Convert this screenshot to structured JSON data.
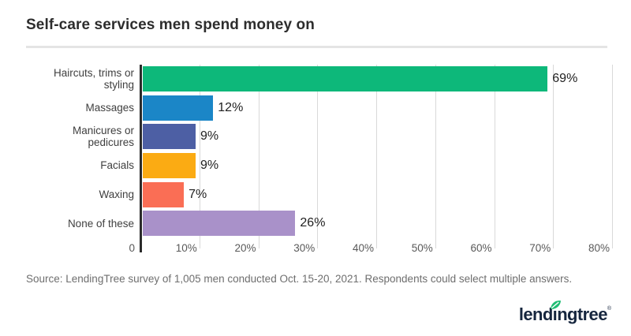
{
  "title": "Self-care services men spend money on",
  "source_note": "Source: LendingTree survey of 1,005 men conducted Oct. 15-20, 2021. Respondents could select multiple answers.",
  "logo": {
    "brand": "lendingtree",
    "brand_prefix": "lend",
    "brand_dotless_i": "ı",
    "brand_suffix": "ngtree",
    "registered_mark": "®",
    "text_color": "#16263e",
    "leaf_color": "#1fbd73"
  },
  "chart_data": {
    "type": "bar",
    "orientation": "horizontal",
    "title": "Self-care services men spend money on",
    "categories": [
      "Haircuts, trims or styling",
      "Massages",
      "Manicures or pedicures",
      "Facials",
      "Waxing",
      "None of these"
    ],
    "values": [
      69,
      12,
      9,
      9,
      7,
      26
    ],
    "value_labels": [
      "69%",
      "12%",
      "9%",
      "9%",
      "7%",
      "26%"
    ],
    "bar_colors": [
      "#0db87a",
      "#1b86c7",
      "#4d5fa4",
      "#fbab13",
      "#fa6e55",
      "#a991c9"
    ],
    "x_ticks": [
      {
        "value": 0,
        "label": "0"
      },
      {
        "value": 10,
        "label": "10%"
      },
      {
        "value": 20,
        "label": "20%"
      },
      {
        "value": 30,
        "label": "30%"
      },
      {
        "value": 40,
        "label": "40%"
      },
      {
        "value": 50,
        "label": "50%"
      },
      {
        "value": 60,
        "label": "60%"
      },
      {
        "value": 70,
        "label": "70%"
      },
      {
        "value": 80,
        "label": "80%"
      }
    ],
    "xlim": [
      0,
      82
    ],
    "grid": true,
    "legend": false,
    "gridline_color": "#d9d9d9",
    "axis_line_color": "#2b2b2b",
    "xlabel": "",
    "ylabel": ""
  }
}
